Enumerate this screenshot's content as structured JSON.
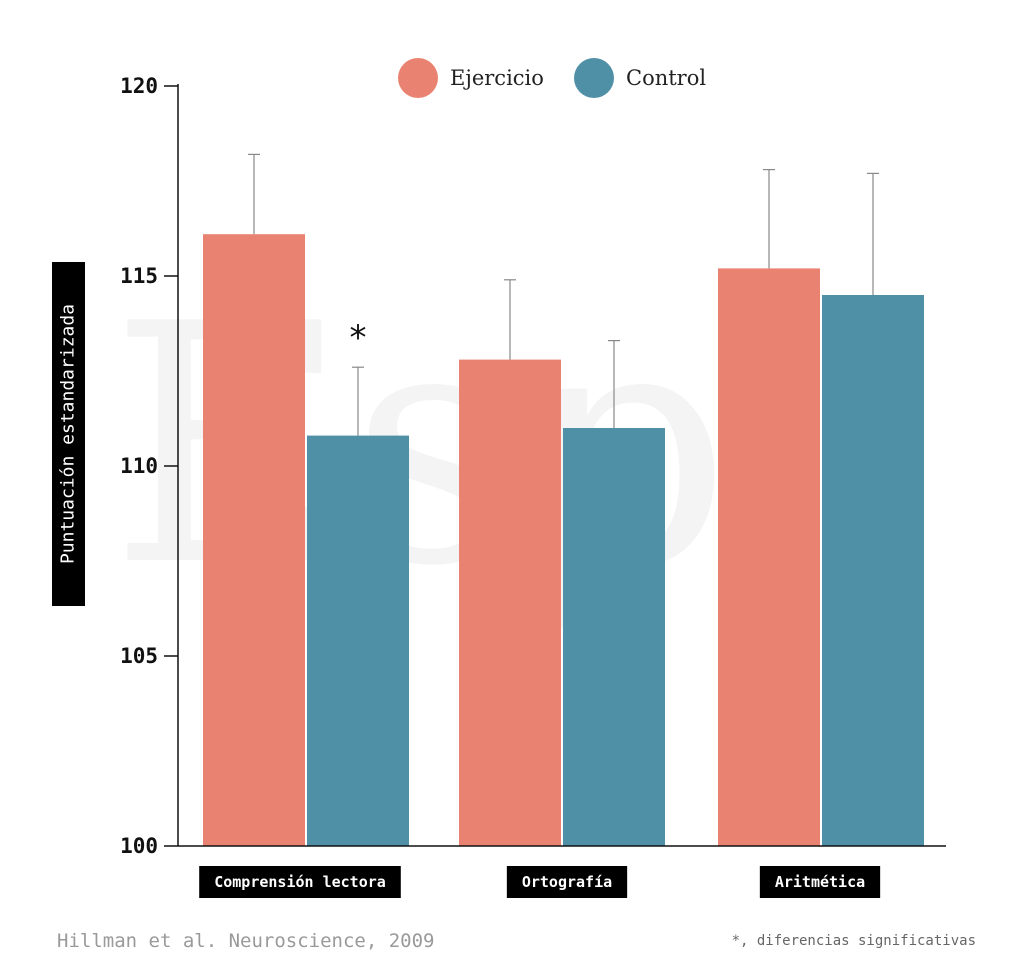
{
  "chart_data": {
    "type": "bar",
    "categories": [
      "Comprensión lectora",
      "Ortografía",
      "Aritmética"
    ],
    "series": [
      {
        "name": "Ejercicio",
        "color": "#EA8272",
        "values": [
          116.1,
          112.8,
          115.2
        ],
        "error_upper": [
          118.2,
          114.9,
          117.8
        ]
      },
      {
        "name": "Control",
        "color": "#5090A6",
        "values": [
          110.8,
          111.0,
          114.5
        ],
        "error_upper": [
          112.6,
          113.3,
          117.7
        ]
      }
    ],
    "ylabel": "Puntuación estandarizada",
    "ylim": [
      100,
      120
    ],
    "yticks": [
      100,
      105,
      110,
      115,
      120
    ],
    "ytick_labels": [
      "100",
      "105",
      "110",
      "115",
      "120"
    ],
    "significance_marker": "*",
    "significant_bars": [
      {
        "category_index": 0,
        "series_index": 1
      }
    ],
    "legend_position": "top",
    "grid": false
  },
  "footer": {
    "source": "Hillman et al. Neuroscience, 2009",
    "note": "*, diferencias significativas"
  },
  "colors": {
    "axis": "#111111",
    "label_box": "#000000",
    "label_text": "#ffffff",
    "error_bar": "#888888",
    "footer_text": "#9a9a9a"
  }
}
